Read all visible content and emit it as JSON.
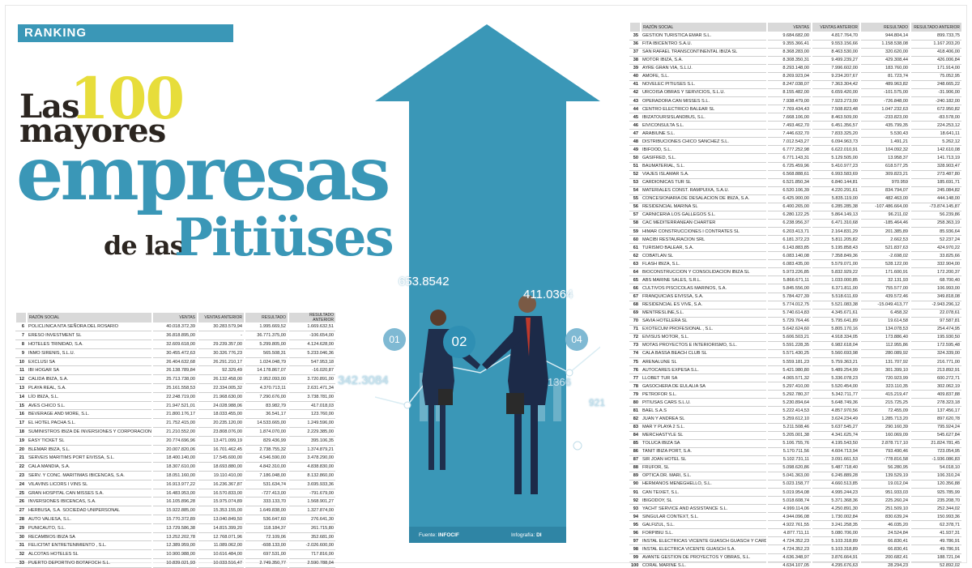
{
  "header": {
    "ranking_label": "RANKING",
    "title_las": "Las",
    "title_100": "100",
    "title_mayores": "mayores",
    "title_empresas": "empresas",
    "title_de_las": "de las",
    "title_pitiuses": "Pitiüses"
  },
  "image": {
    "floating_numbers": [
      "653.8542",
      "411.0364",
      "342.3084",
      "1366",
      "921"
    ],
    "circle_tags": [
      "01",
      "02",
      "04"
    ],
    "source_label": "Fuente:",
    "source_value": "INFOCIF",
    "infographic_label": "Infografía:",
    "infographic_value": "DI",
    "colors": {
      "accent": "#3a97b7",
      "title_yellow": "#e7dd3b",
      "header_grey": "#d9d9d9"
    }
  },
  "table_columns": [
    "RAZÓN SOCIAL",
    "VENTAS",
    "VENTAS ANTERIOR",
    "RESULTADO",
    "RESULTADO ANTERIOR"
  ],
  "left_table": [
    [
      "6",
      "POLICLINICA NTA SEÑORA DEL ROSARIO",
      "40.018.372,39",
      "30.283.579,94",
      "1.995.669,52",
      "1.669.632,51"
    ],
    [
      "7",
      "ERESO INVESTMENT SL",
      "36.818.895,00",
      "-",
      "36.771.375,00",
      "-106.654,00"
    ],
    [
      "8",
      "HOTELES TRINIDAD, S.A.",
      "32.609.618,00",
      "29.239.357,00",
      "5.299.805,00",
      "4.124.628,00"
    ],
    [
      "9",
      "INMO SIRENIS, S.L.U.",
      "30.455.472,63",
      "30.326.776,23",
      "565.508,31",
      "5.233.046,36"
    ],
    [
      "10",
      "EXCLUSI SA",
      "26.404.632,68",
      "26.291.210,17",
      "1.024.048,79",
      "547.953,18"
    ],
    [
      "11",
      "IBI HOGAR SA",
      "26.138.789,84",
      "92.329,49",
      "14.178.867,07",
      "-16.020,87"
    ],
    [
      "12",
      "CALIDA IBIZA, S.A.",
      "25.713.738,00",
      "26.132.458,00",
      "2.952.093,00",
      "3.720.891,00"
    ],
    [
      "13",
      "PLAYA REAL, S.A.",
      "25.161.558,53",
      "22.334.005,32",
      "4.370.713,11",
      "2.631.471,34"
    ],
    [
      "14",
      "LÍO IBIZA, S.L.",
      "22.248.719,00",
      "21.968.630,00",
      "7.290.676,00",
      "3.738.781,00"
    ],
    [
      "15",
      "AVES CHICO S.L.",
      "21.947.521,01",
      "24.028.988,06",
      "83.982,79",
      "417.018,03"
    ],
    [
      "16",
      "BEVERAGE AND MORE, S.L.",
      "21.800.176,17",
      "18.033.455,00",
      "36.541,17",
      "123.760,00"
    ],
    [
      "17",
      "EL HOTEL PACHA S.L.",
      "21.752.415,00",
      "20.235.120,00",
      "14.533.665,00",
      "1.249.596,00"
    ],
    [
      "18",
      "SUMINISTROS IBIZA DE INVERSIONES Y CORPORACION, S.L.",
      "21.210.552,00",
      "23.808.076,00",
      "1.874.070,00",
      "2.229.385,00"
    ],
    [
      "19",
      "EASY TICKET SL",
      "20.774.696,96",
      "13.471.099,19",
      "829.436,99",
      "395.106,35"
    ],
    [
      "20",
      "BLEMAR IBIZA, S.L.",
      "20.007.820,06",
      "16.701.462,45",
      "2.738.755,32",
      "1.374.879,21"
    ],
    [
      "21",
      "SERVEIS MARITIMS PORT EIVISSA, S.L.",
      "18.400.140,00",
      "17.545.600,00",
      "4.546.590,00",
      "3.478.290,00"
    ],
    [
      "22",
      "CALA MANDIA, S.A.",
      "18.307.610,00",
      "18.693.880,00",
      "4.842.310,00",
      "4.838.830,00"
    ],
    [
      "23",
      "SERV. Y CONC. MARITIMAS IBICENCAS, S.A.",
      "18.051.160,00",
      "19.110.410,00",
      "7.186.048,00",
      "8.132.860,00"
    ],
    [
      "24",
      "VILAVINS LICORS I VINS SL",
      "16.913.977,22",
      "16.236.367,87",
      "531.634,74",
      "3.695.933,36"
    ],
    [
      "25",
      "GRAN HOSPITAL CAN MISSES S.A.",
      "16.483.953,00",
      "16.570.833,00",
      "-727.413,00",
      "-791.679,00"
    ],
    [
      "26",
      "INVERSIONES IBICENCAS, S.A.",
      "16.105.896,28",
      "15.975.074,89",
      "333.133,70",
      "1.568.901,27"
    ],
    [
      "27",
      "HERBUSA, S.A. SOCIEDAD UNIPERSONAL",
      "15.922.885,00",
      "15.353.155,00",
      "1.649.838,00",
      "1.327.874,00"
    ],
    [
      "28",
      "AUTO VALIESA, S.L.",
      "15.770.372,89",
      "13.040.849,50",
      "536.647,60",
      "276.641,30"
    ],
    [
      "29",
      "PUNICAUTO, S.L.",
      "13.729.586,38",
      "14.815.399,20",
      "118.184,37",
      "261.715,80"
    ],
    [
      "30",
      "RECAMBIOS IBIZA SA",
      "13.252.202,78",
      "12.768.071,96",
      "72.109,06",
      "352.681,00"
    ],
    [
      "31",
      "FELICITAT ENTRETENIMIENTO , S.L.",
      "12.389.959,00",
      "11.089.062,00",
      "-608.133,00",
      "-2.026.600,00"
    ],
    [
      "32",
      "ALCOTAS HOTELES SL",
      "10.900.988,00",
      "10.616.484,00",
      "697.531,00",
      "717.816,00"
    ],
    [
      "33",
      "PUERTO DEPORTIVO BOTAFOCH S.L.",
      "10.839.021,93",
      "10.033.516,47",
      "2.749.350,77",
      "2.590.788,04"
    ],
    [
      "34",
      "GASIFREDSAC, S.L.",
      "10.143.671,43",
      "8.881.579,72",
      "8.666,57",
      "223.473,68"
    ]
  ],
  "right_table": [
    [
      "35",
      "GESTION TURISTICA EMAR S.L.",
      "9.684.682,00",
      "4.817.764,70",
      "944.804,14",
      "899.733,75"
    ],
    [
      "36",
      "FITA IBICENTRO S.A.U.",
      "9.355.366,41",
      "9.553.156,66",
      "1.158.538,08",
      "1.167.203,20"
    ],
    [
      "37",
      "SAN RAFAEL TRANSCONTINENTAL IBIZA SL",
      "8.368.283,00",
      "8.463.530,00",
      "320.620,00",
      "418.406,00"
    ],
    [
      "38",
      "MOTOR IBIZA, S.A.",
      "8.308.350,31",
      "9.499.239,27",
      "429.308,44",
      "426.006,84"
    ],
    [
      "39",
      "AYRE GRAN VIA, S.L.U.",
      "8.293.148,00",
      "7.996.602,00",
      "183.760,00",
      "171.914,00"
    ],
    [
      "40",
      "AMOFE, S.L.",
      "8.269.923,04",
      "9.234.207,67",
      "81.723,74",
      "75.052,95"
    ],
    [
      "41",
      "NOVELEC PITIUSES S.L.",
      "8.247.038,07",
      "7.363.304,42",
      "489.963,82",
      "248.665,22"
    ],
    [
      "42",
      "URCOISA OBRAS Y SERVICIOS, S.L.U.",
      "8.155.482,00",
      "6.659.420,00",
      "-101.575,00",
      "-31.906,00"
    ],
    [
      "43",
      "OPERADORA CAN MISSES S.L.",
      "7.938.479,00",
      "7.923.273,00",
      "-726.848,00",
      "-240.182,00"
    ],
    [
      "44",
      "CENTRO ELECTRICO BALEAR SL",
      "7.769.434,43",
      "7.508.823,48",
      "1.047.232,63",
      "672.950,82"
    ],
    [
      "45",
      "IBIZATOURSISLANDBUS, S.L.",
      "7.668.106,00",
      "8.463.509,00",
      "-233.823,00",
      "-83.578,00"
    ],
    [
      "46",
      "EIVICONSULTA S.L.",
      "7.493.462,70",
      "6.451.356,57",
      "435.799,35",
      "224.253,12"
    ],
    [
      "47",
      "ARABIUNE S.L.",
      "7.446.632,70",
      "7.833.325,20",
      "5.530,43",
      "18.641,11"
    ],
    [
      "48",
      "DISTRIBUCIONES CHICO SANCHEZ S.L.",
      "7.012.543,27",
      "6.094.963,73",
      "1.491,21",
      "5.262,12"
    ],
    [
      "49",
      "IBIFOOD, S.L.",
      "6.777.252,98",
      "6.622.010,91",
      "104.092,32",
      "142.610,08"
    ],
    [
      "50",
      "GASIFRED, S.L.",
      "6.771.143,31",
      "5.129.505,00",
      "13.958,37",
      "141.713,19"
    ],
    [
      "51",
      "BAUMATERIAL, S.L.",
      "6.725.459,96",
      "5.410.977,23",
      "618.577,25",
      "328.903,47"
    ],
    [
      "52",
      "VIAJES ISLAMAR S.A.",
      "6.568.888,61",
      "6.993.583,69",
      "309.823,21",
      "273.487,80"
    ],
    [
      "53",
      "CARDIONICAS TUR SL",
      "6.521.850,34",
      "6.840.144,81",
      "970.959",
      "185.691,71"
    ],
    [
      "54",
      "MATERIALES CONST. RAMPUIXA, S.A.U.",
      "6.520.106,39",
      "4.220.291,61",
      "834.794,07",
      "245.084,82"
    ],
    [
      "55",
      "CONCESIONARIA DE DESALACION DE IBIZA, S.A.",
      "6.425.900,00",
      "5.835.119,00",
      "482.463,00",
      "444.148,00"
    ],
    [
      "56",
      "RESIDENCIAL MARINA SL",
      "6.400.265,00",
      "6.285.285,38",
      "-107.486.664,00",
      "-73.874.145,87"
    ],
    [
      "57",
      "CARNICERIA LOS GALLEGOS S.L.",
      "6.280.122,25",
      "5.864.149,13",
      "96.211,02",
      "56.239,86"
    ],
    [
      "58",
      "CAC MEDITERRANEAN CHARTER",
      "6.238.956,37",
      "6.471.310,68",
      "-185.464,46",
      "258.363,19"
    ],
    [
      "59",
      "HIMAR CONSTRUCCIONES I CONTRATES SL",
      "6.203.413,71",
      "2.164.831,29",
      "201.385,89",
      "85.936,64"
    ],
    [
      "60",
      "MACIBI RESTAURACION SRL",
      "6.181.372,23",
      "5.811.205,82",
      "2.662,53",
      "52.237,24"
    ],
    [
      "61",
      "TURISMO BALEAR, S.A.",
      "6.143.883,85",
      "5.195.858,43",
      "521.837,63",
      "424.970,22"
    ],
    [
      "62",
      "COBATLAN SL",
      "6.083.140,08",
      "7.358.849,36",
      "-2.698,02",
      "33.825,66"
    ],
    [
      "63",
      "FLASH IBIZA, S.L.",
      "6.083.435,00",
      "5.579.071,00",
      "528.122,00",
      "332.904,00"
    ],
    [
      "64",
      "BIOCONSTRUCCION Y CONSOLIDACION IBIZA SL",
      "5.973.226,85",
      "5.832.929,22",
      "171.600,91",
      "172.200,37"
    ],
    [
      "65",
      "ABS MARINE SALES, S.R.L.",
      "5.866.671,11",
      "1.033.000,85",
      "32.131,93",
      "68.700,40"
    ],
    [
      "66",
      "CULTIVOS PISCICOLAS MARINOS, S.A.",
      "5.845.556,00",
      "6.371.811,00",
      "755.577,00",
      "106.993,00"
    ],
    [
      "67",
      "FRANQUICIAS EIVISSA, S.A.",
      "5.784.427,39",
      "5.518.611,69",
      "439.572,46",
      "349.818,08"
    ],
    [
      "68",
      "RESIDENCIAL ES VIVE, S.A.",
      "5.774.012,75",
      "5.521.083,38",
      "-15.049.413,77",
      "-2.943.296,12"
    ],
    [
      "69",
      "MENTRESLINE,S.L.",
      "5.740.614,83",
      "4.345.671,61",
      "6.458,32",
      "22.078,61"
    ],
    [
      "70",
      "SAVIA HOTELERA SL",
      "5.729.764,46",
      "5.795.641,89",
      "19.614,58",
      "97.587,81"
    ],
    [
      "71",
      "EXOTECUM PROFESIONAL , S.L.",
      "5.642.624,60",
      "5.805.170,16",
      "134.078,53",
      "254.474,95"
    ],
    [
      "72",
      "EIVISUS MOTOR, S.L.",
      "5.606.503,21",
      "4.918.334,05",
      "173.886,40",
      "195.930,50"
    ],
    [
      "73",
      "MOTAS PROYECTOS E INTERIORISMO, S.L.",
      "5.591.228,35",
      "6.982.618,04",
      "112.955,86",
      "172.595,48"
    ],
    [
      "74",
      "CALA BASSA BEACH CLUB SL",
      "5.571.430,25",
      "5.560.693,98",
      "280.089,92",
      "324.339,00"
    ],
    [
      "75",
      "ARENALUNE SL",
      "5.559.181,23",
      "5.759.363,21",
      "131.707,92",
      "216.771,00"
    ],
    [
      "76",
      "AUTOCARES EXPESA S.L.",
      "5.421.980,80",
      "5.489.254,99",
      "301.399,10",
      "213.892,91"
    ],
    [
      "77",
      "LLOBET TUR SA",
      "4.065.571,32",
      "5.336.078,23",
      "720.923,99",
      "600.272,71"
    ],
    [
      "78",
      "GASOCHERA DE EULALIA SA",
      "5.297.410,00",
      "5.520.454,00",
      "323.110,35",
      "302.062,19"
    ],
    [
      "79",
      "PETROFOR S.L.",
      "5.292.780,37",
      "5.342.711,77",
      "415.219,47",
      "409.837,88"
    ],
    [
      "80",
      "PITIUSAS CARS S.L.U.",
      "5.230.894,64",
      "5.648.749,36",
      "215.725,25",
      "278.323,18"
    ],
    [
      "81",
      "BAEL S.A.S",
      "5.222.414,53",
      "4.857.970,56",
      "72.455,09",
      "137.456,17"
    ],
    [
      "82",
      "JUAN Y ANDREA SL",
      "5.259.612,10",
      "3.624.234,49",
      "1.285.713,20",
      "897.620,78"
    ],
    [
      "83",
      "MAR Y PLAYA 2 S.L.",
      "5.211.508,46",
      "5.637.545,27",
      "290.160,39",
      "795.924,24"
    ],
    [
      "84",
      "MERCHASTYLE SL",
      "5.205.001,38",
      "4.341.625,74",
      "160.069,09",
      "545.627,84"
    ],
    [
      "85",
      "TOLUCA IBIZA SA",
      "5.106.755,76",
      "4.195.543,50",
      "2.878.717,10",
      "21.824.781,45"
    ],
    [
      "86",
      "TANIT IBIZA PORT, S.A.",
      "5.170.711,56",
      "4.604.713,94",
      "793.490,46",
      "723.054,95"
    ],
    [
      "87",
      "SIR JOAN HOTEL SL",
      "5.102.731,11",
      "3.091.661,53",
      "-778.816,58",
      "-1.936.086,83"
    ],
    [
      "88",
      "FRUFOR, SL",
      "5.098.620,86",
      "5.487.718,40",
      "56.280,95",
      "54.018,10"
    ],
    [
      "89",
      "OPTICA DR. MARI, S.L.",
      "5.041.363,00",
      "6.245.889,28",
      "139.529,19",
      "106.310,24"
    ],
    [
      "90",
      "HERMANOS MENEGHELLO, S.L.",
      "5.023.158,77",
      "4.660.513,85",
      "19.012,04",
      "120.356,88"
    ],
    [
      "91",
      "CAN TEIXET, S.L.",
      "5.019.954,08",
      "4.995.244,23",
      "951.933,03",
      "925.785,99"
    ],
    [
      "92",
      "IBIGODOY, SL",
      "5.018.608,74",
      "5.371.368,36",
      "225.260,24",
      "235.208,70"
    ],
    [
      "93",
      "YACHT SERVICE AND ASSISTANCE S.L.",
      "4.999.114,06",
      "4.250.891,30",
      "251.509,10",
      "252.344,02"
    ],
    [
      "94",
      "SINGULAR CONTEXT, S.L.",
      "4.944.096,08",
      "1.730.002,84",
      "830.639,24",
      "150.993,36"
    ],
    [
      "95",
      "GALFIZUL, S.L.",
      "4.922.761,55",
      "3.241.258,35",
      "46.035,20",
      "62.378,71"
    ],
    [
      "96",
      "FORPIBIU S.L.",
      "4.877.711,11",
      "5.080.706,00",
      "24.524,84",
      "41.937,31"
    ],
    [
      "97",
      "INSTAL ELECTRICAS VICENTE GUASCH GUASCH Y CARDONA SA",
      "4.724.352,23",
      "5.103.318,89",
      "66.830,41",
      "49.786,91"
    ],
    [
      "98",
      "INSTAL ELECTRICA VICENTE GUASCH S.A.",
      "4.724.352,23",
      "5.103.318,89",
      "66.830,41",
      "49.786,91"
    ],
    [
      "99",
      "AVANTE GESTION DE PROYECTOS Y OBRAS, S.L.",
      "4.636.348,97",
      "3.876.664,91",
      "200.682,41",
      "188.721,04"
    ],
    [
      "100",
      "CORAL MARINE S.L.",
      "4.634.107,05",
      "4.295.676,63",
      "28.294,23",
      "52.892,02"
    ]
  ]
}
